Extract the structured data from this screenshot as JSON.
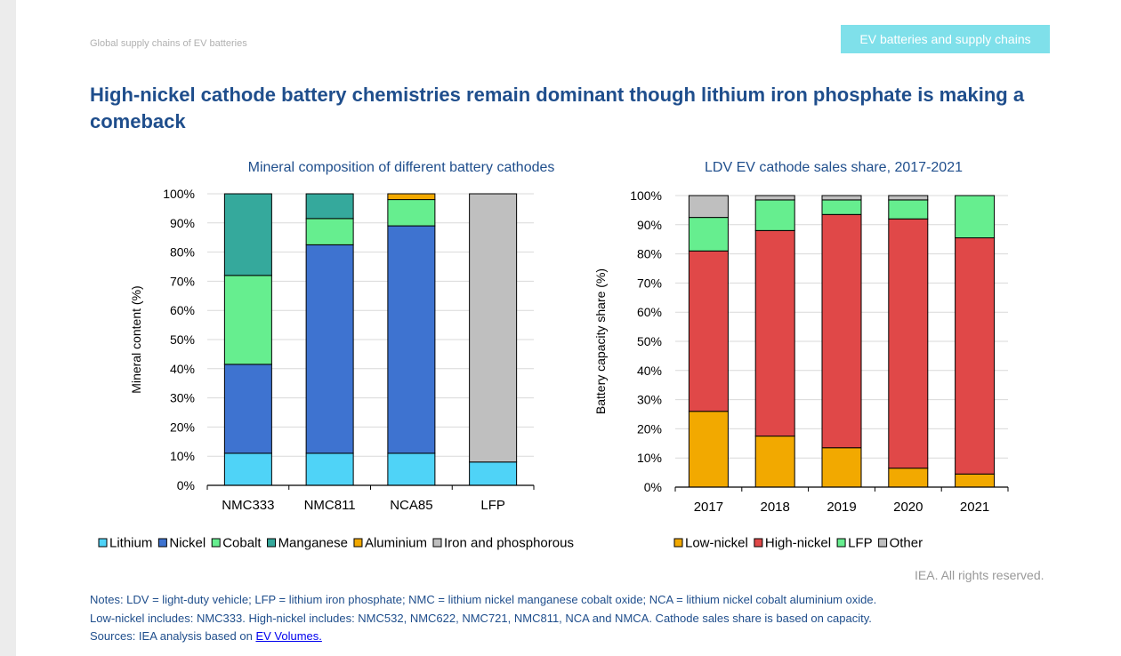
{
  "header": {
    "section": "Global supply chains of EV batteries",
    "badge": "EV batteries and supply chains"
  },
  "headline": "High-nickel cathode battery chemistries remain dominant though lithium iron phosphate is making a comeback",
  "chart_data": [
    {
      "type": "bar",
      "stacked": true,
      "title": "Mineral composition of different battery cathodes",
      "ylabel": "Mineral content (%)",
      "xlabel": "",
      "ylim": [
        0,
        100
      ],
      "yticks": [
        "0%",
        "10%",
        "20%",
        "30%",
        "40%",
        "50%",
        "60%",
        "70%",
        "80%",
        "90%",
        "100%"
      ],
      "grid": true,
      "legend_position": "bottom",
      "categories": [
        "NMC333",
        "NMC811",
        "NCA85",
        "LFP"
      ],
      "series": [
        {
          "name": "Lithium",
          "color": "#4fd3f7",
          "values": [
            11,
            11,
            11,
            8
          ]
        },
        {
          "name": "Nickel",
          "color": "#3e73d0",
          "values": [
            30.5,
            71.5,
            78,
            0
          ]
        },
        {
          "name": "Cobalt",
          "color": "#66ee8f",
          "values": [
            30.5,
            9,
            9,
            0
          ]
        },
        {
          "name": "Manganese",
          "color": "#35a99c",
          "values": [
            28,
            8.5,
            0,
            0
          ]
        },
        {
          "name": "Aluminium",
          "color": "#f2a900",
          "values": [
            0,
            0,
            2,
            0
          ]
        },
        {
          "name": "Iron and phosphorous",
          "color": "#bfbfbf",
          "values": [
            0,
            0,
            0,
            92
          ]
        }
      ]
    },
    {
      "type": "bar",
      "stacked": true,
      "title": "LDV EV cathode sales share, 2017-2021",
      "ylabel": "Battery capacity share (%)",
      "xlabel": "",
      "ylim": [
        0,
        100
      ],
      "yticks": [
        "0%",
        "10%",
        "20%",
        "30%",
        "40%",
        "50%",
        "60%",
        "70%",
        "80%",
        "90%",
        "100%"
      ],
      "grid": true,
      "legend_position": "bottom",
      "categories": [
        "2017",
        "2018",
        "2019",
        "2020",
        "2021"
      ],
      "series": [
        {
          "name": "Low-nickel",
          "color": "#f2a900",
          "values": [
            26,
            17.5,
            13.5,
            6.5,
            4.5
          ]
        },
        {
          "name": "High-nickel",
          "color": "#e04848",
          "values": [
            55,
            70.5,
            80,
            85.5,
            81
          ]
        },
        {
          "name": "LFP",
          "color": "#66ee8f",
          "values": [
            11.5,
            10.5,
            5,
            6.5,
            14.5
          ]
        },
        {
          "name": "Other",
          "color": "#bfbfbf",
          "values": [
            7.5,
            1.5,
            1.5,
            1.5,
            0
          ]
        }
      ]
    }
  ],
  "rights": "IEA. All rights reserved.",
  "notes": {
    "line1": "Notes: LDV = light-duty vehicle; LFP = lithium iron phosphate; NMC = lithium nickel manganese cobalt oxide; NCA = lithium nickel cobalt aluminium oxide.",
    "line2": "Low-nickel includes: NMC333. High-nickel includes: NMC532, NMC622, NMC721, NMC811, NCA and NMCA. Cathode sales share is based on capacity.",
    "sources_prefix": "Sources: IEA analysis based on ",
    "sources_link": "EV Volumes."
  }
}
